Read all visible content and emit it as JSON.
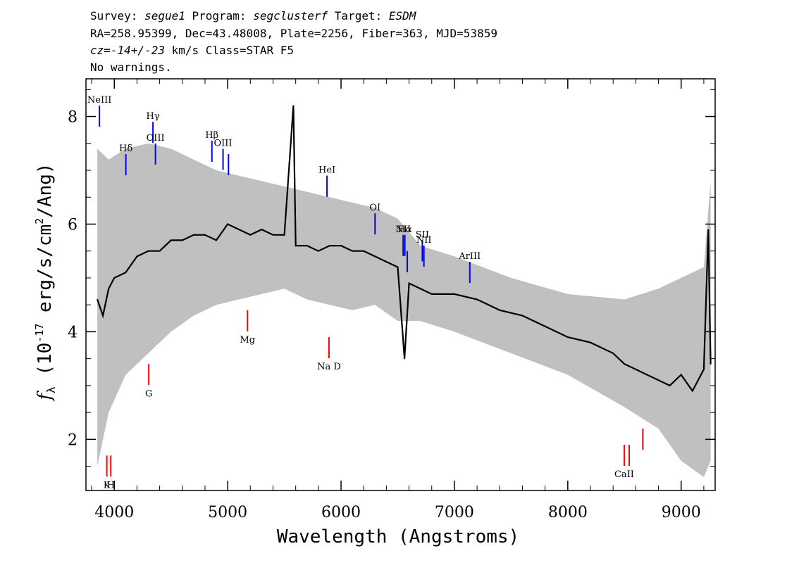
{
  "header": {
    "line1": {
      "survey_label": "Survey: ",
      "survey": "segue1",
      "program_label": " Program: ",
      "program": "segclusterf",
      "target_label": " Target: ",
      "target": "ESDM"
    },
    "line2": "RA=258.95399, Dec=43.48008, Plate=2256, Fiber=363, MJD=53859",
    "line3": {
      "cz": "cz=-14+/-23",
      "rest": " km/s Class=STAR F5"
    },
    "line4": "No warnings."
  },
  "chart_data": {
    "type": "line",
    "xlabel": "Wavelength (Angstroms)",
    "ylabel": "f_λ (10^-17 erg/s/cm^2/Ang)",
    "xlim": [
      3750,
      9300
    ],
    "ylim": [
      1.05,
      8.7
    ],
    "xticks": [
      4000,
      5000,
      6000,
      7000,
      8000,
      9000
    ],
    "yticks": [
      2,
      4,
      6,
      8
    ],
    "series": [
      {
        "role": "flux",
        "color": "#000000",
        "x": [
          3850,
          3900,
          3950,
          4000,
          4100,
          4200,
          4300,
          4400,
          4500,
          4600,
          4700,
          4800,
          4900,
          5000,
          5100,
          5200,
          5300,
          5400,
          5500,
          5580,
          5600,
          5700,
          5800,
          5900,
          6000,
          6100,
          6200,
          6300,
          6400,
          6500,
          6560,
          6600,
          6700,
          6800,
          7000,
          7200,
          7400,
          7600,
          7800,
          8000,
          8200,
          8400,
          8500,
          8600,
          8700,
          8800,
          8900,
          9000,
          9100,
          9200,
          9240,
          9260
        ],
        "y": [
          4.6,
          4.3,
          4.8,
          5.0,
          5.1,
          5.4,
          5.5,
          5.5,
          5.7,
          5.7,
          5.8,
          5.8,
          5.7,
          6.0,
          5.9,
          5.8,
          5.9,
          5.8,
          5.8,
          8.2,
          5.6,
          5.6,
          5.5,
          5.6,
          5.6,
          5.5,
          5.5,
          5.4,
          5.3,
          5.2,
          3.5,
          4.9,
          4.8,
          4.7,
          4.7,
          4.6,
          4.4,
          4.3,
          4.1,
          3.9,
          3.8,
          3.6,
          3.4,
          3.3,
          3.2,
          3.1,
          3.0,
          3.2,
          2.9,
          3.3,
          5.9,
          3.4
        ]
      },
      {
        "role": "error_band",
        "color": "#c0c0c0",
        "x": [
          3850,
          3950,
          4100,
          4300,
          4500,
          4700,
          4900,
          5100,
          5300,
          5500,
          5700,
          5900,
          6100,
          6300,
          6500,
          6700,
          7000,
          7500,
          8000,
          8500,
          8800,
          9000,
          9200,
          9260
        ],
        "upper": [
          7.4,
          7.2,
          7.4,
          7.5,
          7.4,
          7.2,
          7.0,
          6.9,
          6.8,
          6.7,
          6.6,
          6.5,
          6.4,
          6.3,
          6.1,
          5.6,
          5.4,
          5.0,
          4.7,
          4.6,
          4.8,
          5.0,
          5.2,
          6.8
        ],
        "lower": [
          1.5,
          2.5,
          3.2,
          3.6,
          4.0,
          4.3,
          4.5,
          4.6,
          4.7,
          4.8,
          4.6,
          4.5,
          4.4,
          4.5,
          4.2,
          4.2,
          4.0,
          3.6,
          3.2,
          2.6,
          2.2,
          1.6,
          1.3,
          1.6
        ]
      }
    ],
    "emission_lines": [
      {
        "label": "NeIII",
        "wave": 3869,
        "y": 8.2
      },
      {
        "label": "Hδ",
        "wave": 4102,
        "y": 7.3
      },
      {
        "label": "Hγ",
        "wave": 4341,
        "y": 7.9
      },
      {
        "label": "OIII",
        "wave": 4363,
        "y": 7.5
      },
      {
        "label": "Hβ",
        "wave": 4861,
        "y": 7.55
      },
      {
        "label": "OIII",
        "wave": 4959,
        "y": 7.4
      },
      {
        "label": "",
        "wave": 5007,
        "y": 7.3
      },
      {
        "label": "HeI",
        "wave": 5876,
        "y": 6.9
      },
      {
        "label": "OI",
        "wave": 6300,
        "y": 6.2
      },
      {
        "label": "NII",
        "wave": 6548,
        "y": 5.8
      },
      {
        "label": "Hα",
        "wave": 6563,
        "y": 5.8
      },
      {
        "label": "",
        "wave": 6584,
        "y": 5.5
      },
      {
        "label": "SII",
        "wave": 6717,
        "y": 5.7
      },
      {
        "label": "NII",
        "wave": 6731,
        "y": 5.6
      },
      {
        "label": "ArIII",
        "wave": 7136,
        "y": 5.3
      }
    ],
    "absorption_lines": [
      {
        "label": "K",
        "wave": 3934,
        "y": 1.7
      },
      {
        "label": "H",
        "wave": 3969,
        "y": 1.7
      },
      {
        "label": "G",
        "wave": 4304,
        "y": 3.4
      },
      {
        "label": "Mg",
        "wave": 5175,
        "y": 4.4
      },
      {
        "label": "Na D",
        "wave": 5894,
        "y": 3.9
      },
      {
        "label": "CaII",
        "wave": 8498,
        "y": 1.9
      },
      {
        "label": "",
        "wave": 8542,
        "y": 1.9
      },
      {
        "label": "",
        "wave": 8662,
        "y": 2.2
      }
    ],
    "colors": {
      "flux": "#000000",
      "error": "#c0c0c0",
      "emission": "#0000ff",
      "absorption": "#ff0000"
    }
  }
}
